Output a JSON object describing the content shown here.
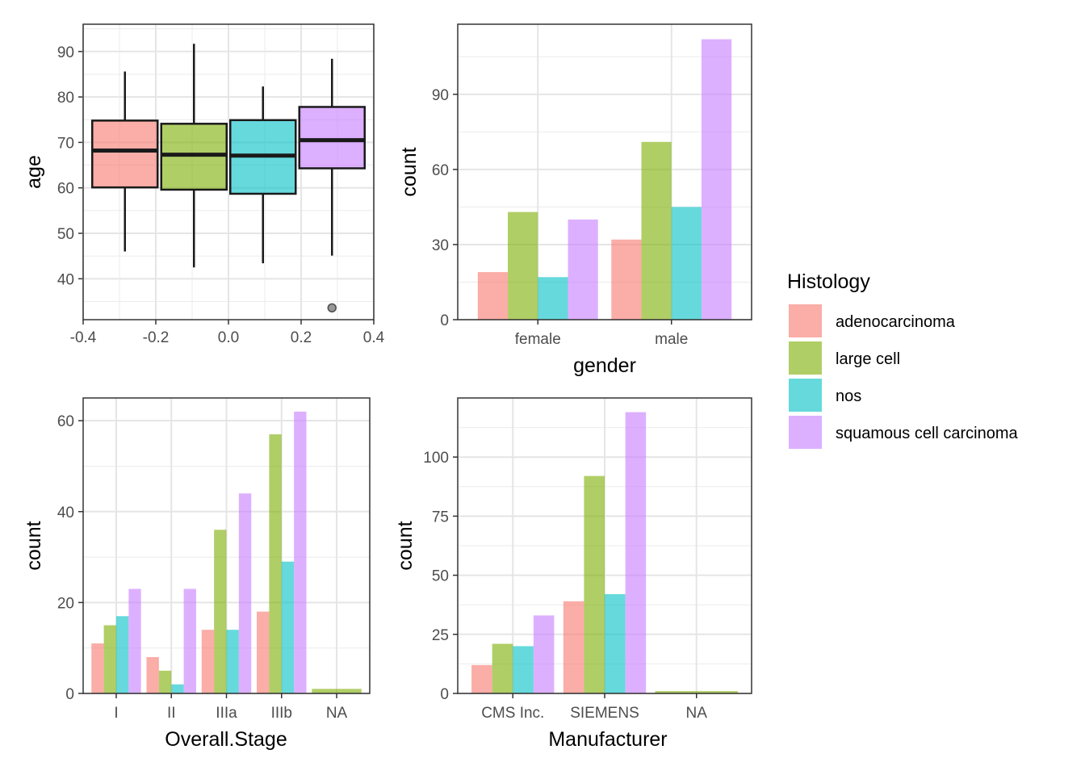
{
  "colors": {
    "adenocarcinoma": "#F8766D",
    "large cell": "#7CAE00",
    "nos": "#00BFC4",
    "squamous cell carcinoma": "#C77CFF"
  },
  "legend": {
    "title": "Histology",
    "entries": [
      "adenocarcinoma",
      "large cell",
      "nos",
      "squamous cell carcinoma"
    ],
    "position": "right"
  },
  "chart_data": [
    {
      "type": "box",
      "xlabel": "",
      "ylabel": "age",
      "xlim": [
        -0.4,
        0.4
      ],
      "ylim": [
        31,
        96
      ],
      "xticks": [
        -0.4,
        -0.2,
        0.0,
        0.2,
        0.4
      ],
      "xtick_labels": [
        "-0.4",
        "-0.2",
        "0.0",
        "0.2",
        "0.4"
      ],
      "yticks": [
        40,
        50,
        60,
        70,
        80,
        90
      ],
      "grid": true,
      "boxes": [
        {
          "name": "adenocarcinoma",
          "x_from": -0.375,
          "x_to": -0.195,
          "whisker_low": 46,
          "q1": 60.1,
          "median": 68.2,
          "q3": 74.8,
          "whisker_high": 85.6,
          "outliers": []
        },
        {
          "name": "large cell",
          "x_from": -0.185,
          "x_to": -0.005,
          "whisker_low": 42.5,
          "q1": 59.6,
          "median": 67.3,
          "q3": 74.1,
          "whisker_high": 91.7,
          "outliers": []
        },
        {
          "name": "nos",
          "x_from": 0.005,
          "x_to": 0.185,
          "whisker_low": 43.4,
          "q1": 58.7,
          "median": 67.1,
          "q3": 74.9,
          "whisker_high": 82.3,
          "outliers": []
        },
        {
          "name": "squamous cell carcinoma",
          "x_from": 0.195,
          "x_to": 0.375,
          "whisker_low": 45.1,
          "q1": 64.3,
          "median": 70.5,
          "q3": 77.8,
          "whisker_high": 88.4,
          "outliers": [
            33.6
          ]
        }
      ]
    },
    {
      "type": "bar",
      "xlabel": "gender",
      "ylabel": "count",
      "categories": [
        "female",
        "male"
      ],
      "ylim": [
        0,
        118
      ],
      "yticks": [
        0,
        30,
        60,
        90
      ],
      "grid": true,
      "series": [
        {
          "name": "adenocarcinoma",
          "values": [
            19,
            32
          ]
        },
        {
          "name": "large cell",
          "values": [
            43,
            71
          ]
        },
        {
          "name": "nos",
          "values": [
            17,
            45
          ]
        },
        {
          "name": "squamous cell carcinoma",
          "values": [
            40,
            112
          ]
        }
      ]
    },
    {
      "type": "bar",
      "xlabel": "Overall.Stage",
      "ylabel": "count",
      "categories": [
        "I",
        "II",
        "IIIa",
        "IIIb",
        "NA"
      ],
      "ylim": [
        0,
        65
      ],
      "yticks": [
        0,
        20,
        40,
        60
      ],
      "grid": true,
      "series": [
        {
          "name": "adenocarcinoma",
          "values": [
            11,
            8,
            14,
            18,
            null
          ]
        },
        {
          "name": "large cell",
          "values": [
            15,
            5,
            36,
            57,
            1
          ]
        },
        {
          "name": "nos",
          "values": [
            17,
            2,
            14,
            29,
            null
          ]
        },
        {
          "name": "squamous cell carcinoma",
          "values": [
            23,
            23,
            44,
            62,
            null
          ]
        }
      ]
    },
    {
      "type": "bar",
      "xlabel": "Manufacturer",
      "ylabel": "count",
      "categories": [
        "CMS Inc.",
        "SIEMENS",
        "NA"
      ],
      "ylim": [
        0,
        125
      ],
      "yticks": [
        0,
        25,
        50,
        75,
        100
      ],
      "grid": true,
      "series": [
        {
          "name": "adenocarcinoma",
          "values": [
            12,
            39,
            null
          ]
        },
        {
          "name": "large cell",
          "values": [
            21,
            92,
            1
          ]
        },
        {
          "name": "nos",
          "values": [
            20,
            42,
            null
          ]
        },
        {
          "name": "squamous cell carcinoma",
          "values": [
            33,
            119,
            null
          ]
        }
      ]
    }
  ]
}
